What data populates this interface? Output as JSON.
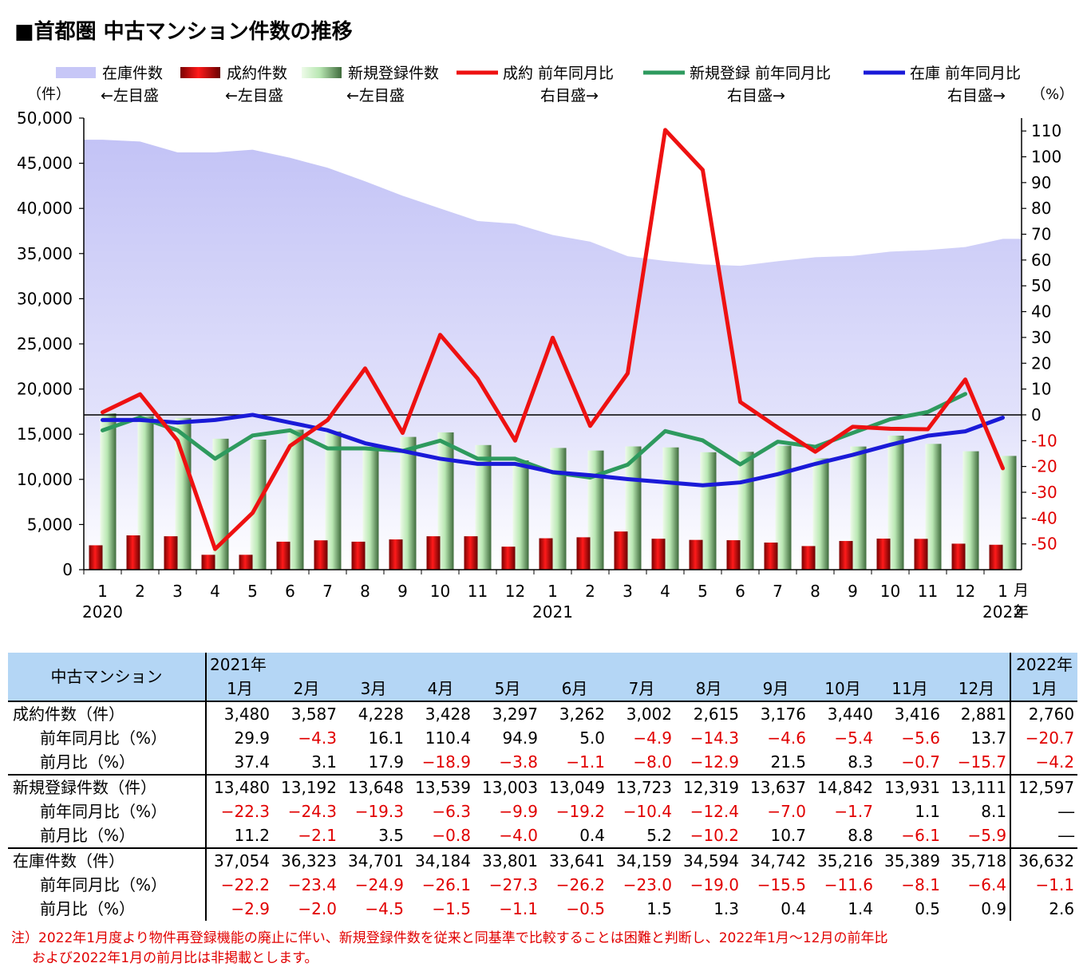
{
  "title": "■首都圏 中古マンション件数の推移",
  "legend": [
    {
      "label": "在庫件数",
      "sub": "←左目盛",
      "kind": "area",
      "color": "#c7c7f7"
    },
    {
      "label": "成約件数",
      "sub": "←左目盛",
      "kind": "bar",
      "color": "#dd0000"
    },
    {
      "label": "新規登録件数",
      "sub": "←左目盛",
      "kind": "bar",
      "color": "#b6e5b0"
    },
    {
      "label": "成約 前年同月比",
      "sub": "右目盛→",
      "kind": "line",
      "color": "#ee1111"
    },
    {
      "label": "新規登録 前年同月比",
      "sub": "右目盛→",
      "kind": "line",
      "color": "#2e9a5e"
    },
    {
      "label": "在庫 前年同月比",
      "sub": "右目盛→",
      "kind": "line",
      "color": "#1a1ad8"
    }
  ],
  "axis_units": {
    "left": "（件）",
    "right": "（%）",
    "month": "月",
    "year": "年"
  },
  "chart_data": {
    "type": "bar",
    "x_month_labels": [
      "1",
      "2",
      "3",
      "4",
      "5",
      "6",
      "7",
      "8",
      "9",
      "10",
      "11",
      "12",
      "1",
      "2",
      "3",
      "4",
      "5",
      "6",
      "7",
      "8",
      "9",
      "10",
      "11",
      "12",
      "1"
    ],
    "x_year_labels": [
      {
        "index": 0,
        "label": "2020"
      },
      {
        "index": 12,
        "label": "2021"
      },
      {
        "index": 24,
        "label": "2022"
      }
    ],
    "y_left": {
      "min": 0,
      "max": 50000,
      "ticks": [
        "0",
        "5,000",
        "10,000",
        "15,000",
        "20,000",
        "25,000",
        "30,000",
        "35,000",
        "40,000",
        "45,000",
        "50,000"
      ]
    },
    "y_right": {
      "min": -60,
      "max": 115,
      "ticks": [
        {
          "v": -50,
          "label": "-50"
        },
        {
          "v": -40,
          "label": "-40"
        },
        {
          "v": -30,
          "label": "-30"
        },
        {
          "v": -20,
          "label": "-20"
        },
        {
          "v": -10,
          "label": "-10"
        },
        {
          "v": 0,
          "label": "0"
        },
        {
          "v": 10,
          "label": "10"
        },
        {
          "v": 20,
          "label": "20"
        },
        {
          "v": 30,
          "label": "30"
        },
        {
          "v": 40,
          "label": "40"
        },
        {
          "v": 50,
          "label": "50"
        },
        {
          "v": 60,
          "label": "60"
        },
        {
          "v": 70,
          "label": "70"
        },
        {
          "v": 80,
          "label": "80"
        },
        {
          "v": 90,
          "label": "90"
        },
        {
          "v": 100,
          "label": "100"
        },
        {
          "v": 110,
          "label": "110"
        }
      ]
    },
    "series": [
      {
        "name": "在庫件数",
        "kind": "area",
        "axis": "left",
        "values": [
          47600,
          47400,
          46200,
          46200,
          46500,
          45600,
          44500,
          43000,
          41400,
          40000,
          38600,
          38300,
          37054,
          36323,
          34701,
          34184,
          33801,
          33641,
          34159,
          34594,
          34742,
          35216,
          35389,
          35718,
          36632
        ]
      },
      {
        "name": "成約件数",
        "kind": "bar",
        "axis": "left",
        "values": [
          2700,
          3800,
          3700,
          1650,
          1650,
          3100,
          3250,
          3100,
          3350,
          3700,
          3700,
          2550,
          3480,
          3587,
          4228,
          3428,
          3297,
          3262,
          3002,
          2615,
          3176,
          3440,
          3416,
          2881,
          2760
        ]
      },
      {
        "name": "新規登録件数",
        "kind": "bar",
        "axis": "left",
        "values": [
          17300,
          17000,
          16800,
          14500,
          14400,
          15500,
          15300,
          13300,
          14700,
          15200,
          13800,
          12100,
          13480,
          13192,
          13648,
          13539,
          13003,
          13049,
          13723,
          12319,
          13637,
          14842,
          13931,
          13111,
          12597
        ]
      },
      {
        "name": "成約 前年同月比",
        "kind": "line",
        "axis": "right",
        "values": [
          1,
          8,
          -10,
          -52,
          -38,
          -12,
          -2,
          18,
          -7,
          31,
          14,
          -10,
          29.9,
          -4.3,
          16.1,
          110.4,
          94.9,
          5.0,
          -4.9,
          -14.3,
          -4.6,
          -5.4,
          -5.6,
          13.7,
          -20.7
        ]
      },
      {
        "name": "新規登録 前年同月比",
        "kind": "line",
        "axis": "right",
        "values": [
          -6,
          -1,
          -6,
          -17,
          -8,
          -6,
          -13,
          -13,
          -14,
          -10,
          -17,
          -17,
          -22.3,
          -24.3,
          -19.3,
          -6.3,
          -9.9,
          -19.2,
          -10.4,
          -12.4,
          -7.0,
          -1.7,
          1.1,
          8.1
        ]
      },
      {
        "name": "在庫 前年同月比",
        "kind": "line",
        "axis": "right",
        "values": [
          -2,
          -2,
          -3,
          -2,
          0,
          -3,
          -6,
          -11,
          -14,
          -17,
          -19,
          -19,
          -22.2,
          -23.4,
          -24.9,
          -26.1,
          -27.3,
          -26.2,
          -23.0,
          -19.0,
          -15.5,
          -11.6,
          -8.1,
          -6.4,
          -1.1
        ]
      }
    ]
  },
  "table": {
    "corner": "中古マンション",
    "year_2021": "2021年",
    "year_2022": "2022年",
    "months": [
      "1月",
      "2月",
      "3月",
      "4月",
      "5月",
      "6月",
      "7月",
      "8月",
      "9月",
      "10月",
      "11月",
      "12月",
      "1月"
    ],
    "groups": [
      {
        "rows": [
          {
            "label": "成約件数（件）",
            "sub": false,
            "cells": [
              "3,480",
              "3,587",
              "4,228",
              "3,428",
              "3,297",
              "3,262",
              "3,002",
              "2,615",
              "3,176",
              "3,440",
              "3,416",
              "2,881",
              "2,760"
            ]
          },
          {
            "label": "前年同月比（%）",
            "sub": true,
            "cells": [
              "29.9",
              "−4.3",
              "16.1",
              "110.4",
              "94.9",
              "5.0",
              "−4.9",
              "−14.3",
              "−4.6",
              "−5.4",
              "−5.6",
              "13.7",
              "−20.7"
            ]
          },
          {
            "label": "前月比（%）",
            "sub": true,
            "cells": [
              "37.4",
              "3.1",
              "17.9",
              "−18.9",
              "−3.8",
              "−1.1",
              "−8.0",
              "−12.9",
              "21.5",
              "8.3",
              "−0.7",
              "−15.7",
              "−4.2"
            ]
          }
        ]
      },
      {
        "rows": [
          {
            "label": "新規登録件数（件）",
            "sub": false,
            "cells": [
              "13,480",
              "13,192",
              "13,648",
              "13,539",
              "13,003",
              "13,049",
              "13,723",
              "12,319",
              "13,637",
              "14,842",
              "13,931",
              "13,111",
              "12,597"
            ]
          },
          {
            "label": "前年同月比（%）",
            "sub": true,
            "cells": [
              "−22.3",
              "−24.3",
              "−19.3",
              "−6.3",
              "−9.9",
              "−19.2",
              "−10.4",
              "−12.4",
              "−7.0",
              "−1.7",
              "1.1",
              "8.1",
              "―"
            ]
          },
          {
            "label": "前月比（%）",
            "sub": true,
            "cells": [
              "11.2",
              "−2.1",
              "3.5",
              "−0.8",
              "−4.0",
              "0.4",
              "5.2",
              "−10.2",
              "10.7",
              "8.8",
              "−6.1",
              "−5.9",
              "―"
            ]
          }
        ]
      },
      {
        "rows": [
          {
            "label": "在庫件数（件）",
            "sub": false,
            "cells": [
              "37,054",
              "36,323",
              "34,701",
              "34,184",
              "33,801",
              "33,641",
              "34,159",
              "34,594",
              "34,742",
              "35,216",
              "35,389",
              "35,718",
              "36,632"
            ]
          },
          {
            "label": "前年同月比（%）",
            "sub": true,
            "cells": [
              "−22.2",
              "−23.4",
              "−24.9",
              "−26.1",
              "−27.3",
              "−26.2",
              "−23.0",
              "−19.0",
              "−15.5",
              "−11.6",
              "−8.1",
              "−6.4",
              "−1.1"
            ]
          },
          {
            "label": "前月比（%）",
            "sub": true,
            "cells": [
              "−2.9",
              "−2.0",
              "−4.5",
              "−1.5",
              "−1.1",
              "−0.5",
              "1.5",
              "1.3",
              "0.4",
              "1.4",
              "0.5",
              "0.9",
              "2.6"
            ]
          }
        ]
      }
    ]
  },
  "note": {
    "line1": "注）2022年1月度より物件再登録機能の廃止に伴い、新規登録件数を従来と同基準で比較することは困難と判断し、2022年1月～12月の前年比",
    "line2": "および2022年1月の前月比は非掲載とします。"
  }
}
